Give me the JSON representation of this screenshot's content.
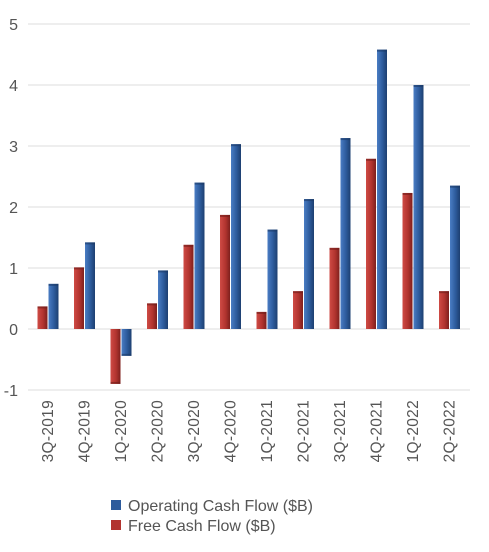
{
  "chart_data": {
    "type": "bar",
    "categories": [
      "3Q-2019",
      "4Q-2019",
      "1Q-2020",
      "2Q-2020",
      "3Q-2020",
      "4Q-2020",
      "1Q-2021",
      "2Q-2021",
      "3Q-2021",
      "4Q-2021",
      "1Q-2022",
      "2Q-2022"
    ],
    "series": [
      {
        "name": "Free Cash Flow ($B)",
        "color": "#b2342f",
        "values": [
          0.37,
          1.01,
          -0.9,
          0.42,
          1.38,
          1.87,
          0.28,
          0.62,
          1.33,
          2.79,
          2.23,
          0.62
        ]
      },
      {
        "name": "Operating Cash Flow ($B)",
        "color": "#2d5b9c",
        "values": [
          0.74,
          1.42,
          -0.44,
          0.96,
          2.4,
          3.03,
          1.63,
          2.13,
          3.13,
          4.58,
          4.0,
          2.35
        ]
      }
    ],
    "ylim": [
      -1,
      5
    ],
    "yticks": [
      -1,
      0,
      1,
      2,
      3,
      4,
      5
    ],
    "grid": true,
    "legend": {
      "position": "bottom",
      "entries": [
        {
          "label": "Operating Cash Flow ($B)",
          "color": "#2d5b9c"
        },
        {
          "label": "Free Cash Flow ($B)",
          "color": "#b2342f"
        }
      ]
    }
  }
}
